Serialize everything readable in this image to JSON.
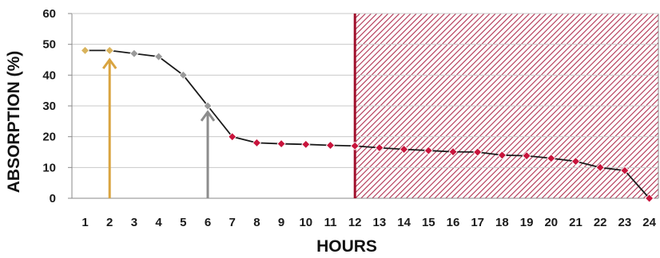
{
  "chart_data": {
    "type": "line",
    "title": "",
    "xlabel": "HOURS",
    "ylabel": "ABSORPTION (%)",
    "ylim": [
      0,
      60
    ],
    "yticks": [
      0,
      10,
      20,
      30,
      40,
      50,
      60
    ],
    "x": [
      1,
      2,
      3,
      4,
      5,
      6,
      7,
      8,
      9,
      10,
      11,
      12,
      13,
      14,
      15,
      16,
      17,
      18,
      19,
      20,
      21,
      22,
      23,
      24
    ],
    "y": [
      48,
      48,
      47,
      46,
      40,
      30,
      20,
      18,
      17.7,
      17.5,
      17.2,
      17,
      16.4,
      15.9,
      15.5,
      15.1,
      15,
      14,
      13.8,
      13,
      12,
      10,
      9,
      0
    ],
    "grid": true,
    "marker_colors": {
      "gold": "#d9b35c",
      "gray": "#9a9a9a",
      "red": "#c8143c"
    },
    "marker_groups": [
      "gold",
      "gold",
      "gray",
      "gray",
      "gray",
      "gray",
      "red",
      "red",
      "red",
      "red",
      "red",
      "red",
      "red",
      "red",
      "red",
      "red",
      "red",
      "red",
      "red",
      "red",
      "red",
      "red",
      "red",
      "red"
    ],
    "line_color": "#1a1a1a",
    "annotations": [
      {
        "type": "arrow",
        "at_x": 2,
        "to_y": 45,
        "color": "#d9a440"
      },
      {
        "type": "arrow",
        "at_x": 6,
        "to_y": 28,
        "color": "#8c8c8c"
      },
      {
        "type": "vertical_line",
        "at_x": 12,
        "color": "#a0102c"
      },
      {
        "type": "hatched_region",
        "from_x": 12,
        "to_x": 24.5,
        "color": "#b03050"
      }
    ]
  }
}
